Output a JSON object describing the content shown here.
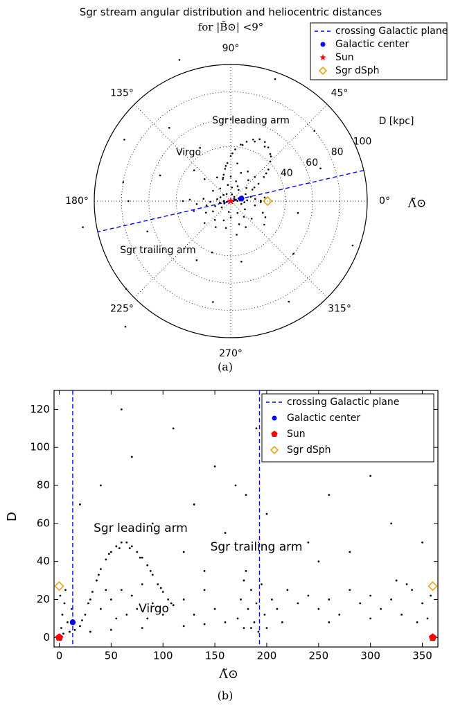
{
  "chart_data": [
    {
      "type": "polar",
      "title": "Sgr stream angular distribution and heliocentric distances",
      "subtitle": "for |B̃⊙| <9°",
      "rlim": [
        0,
        100
      ],
      "rticks": [
        40,
        60,
        80,
        100
      ],
      "thetaticks": [
        {
          "value": 0,
          "label": "0°"
        },
        {
          "value": 45,
          "label": "45°"
        },
        {
          "value": 90,
          "label": "90°"
        },
        {
          "value": 135,
          "label": "135°"
        },
        {
          "value": 180,
          "label": "180°"
        },
        {
          "value": 225,
          "label": "225°"
        },
        {
          "value": 270,
          "label": "270°"
        },
        {
          "value": 315,
          "label": "315°"
        }
      ],
      "r_label": "D [kpc]",
      "theta_label": "Λ̃⊙",
      "caption": "(a)",
      "grid": true,
      "annotations": [
        "Sgr leading arm",
        "Virgo",
        "Sgr trailing arm"
      ],
      "series": [
        {
          "name": "crossing Galactic plane",
          "color": "#0000ff",
          "marker": "dash",
          "theta": [
            13,
            193
          ]
        },
        {
          "name": "Galactic center",
          "color": "#0000ff",
          "marker": "circle",
          "theta": [
            13
          ],
          "values": [
            8
          ]
        },
        {
          "name": "Sun",
          "color": "#ff0000",
          "marker": "star",
          "theta": [
            0
          ],
          "values": [
            0
          ]
        },
        {
          "name": "Sgr dSph",
          "color": "#e8a317",
          "marker": "diamond",
          "theta": [
            0
          ],
          "values": [
            27
          ]
        }
      ]
    },
    {
      "type": "scatter",
      "xlim": [
        -5,
        365
      ],
      "ylim": [
        -5,
        130
      ],
      "xticks": [
        0,
        50,
        100,
        150,
        200,
        250,
        300,
        350
      ],
      "yticks": [
        0,
        20,
        40,
        60,
        80,
        100,
        120
      ],
      "xlabel": "Λ̃⊙",
      "ylabel": "D",
      "caption": "(b)",
      "annotations": [
        "Sgr leading arm",
        "Sgr trailing arm",
        "Virgo"
      ],
      "series": [
        {
          "name": "crossing Galactic plane",
          "color": "#0000ff",
          "marker": "dash",
          "x": [
            13,
            193
          ]
        },
        {
          "name": "Galactic center",
          "color": "#0000ff",
          "marker": "circle",
          "x": [
            13
          ],
          "values": [
            8
          ]
        },
        {
          "name": "Sun",
          "color": "#ff0000",
          "marker": "pentagon",
          "x": [
            0,
            360
          ],
          "values": [
            0,
            0
          ]
        },
        {
          "name": "Sgr dSph",
          "color": "#e8a317",
          "marker": "diamond",
          "x": [
            0,
            360
          ],
          "values": [
            27,
            27
          ]
        }
      ],
      "points": {
        "color": "#000000",
        "x": [
          20,
          25,
          28,
          32,
          36,
          40,
          45,
          50,
          55,
          60,
          65,
          70,
          75,
          80,
          85,
          90,
          95,
          100,
          105,
          110,
          22,
          30,
          38,
          48,
          58,
          68,
          78,
          88,
          98,
          108,
          50,
          60,
          70,
          75,
          80,
          90,
          65,
          55,
          85,
          100,
          40,
          45,
          2,
          3,
          5,
          8,
          10,
          12,
          15,
          1,
          4,
          6,
          30,
          50,
          80,
          120,
          140,
          160,
          130,
          150,
          120,
          140,
          172,
          175,
          178,
          180,
          182,
          185,
          188,
          190,
          195,
          198,
          200,
          205,
          210,
          215,
          185,
          192,
          178,
          220,
          230,
          240,
          250,
          260,
          270,
          280,
          290,
          300,
          310,
          320,
          330,
          340,
          350,
          355,
          358,
          345,
          335,
          325,
          300,
          260,
          40,
          70,
          90,
          110,
          130,
          150,
          160,
          170,
          180,
          200,
          220,
          240,
          260,
          280,
          300,
          320,
          340,
          120,
          20,
          230,
          60,
          350,
          190,
          140,
          250
        ],
        "values": [
          6,
          12,
          18,
          24,
          30,
          36,
          41,
          45,
          48,
          50,
          50,
          48,
          45,
          42,
          38,
          33,
          28,
          24,
          20,
          17,
          9,
          20,
          33,
          44,
          47,
          47,
          42,
          35,
          26,
          18,
          20,
          25,
          22,
          15,
          28,
          18,
          12,
          10,
          10,
          12,
          15,
          25,
          5,
          12,
          18,
          8,
          3,
          15,
          4,
          22,
          2,
          25,
          3,
          4,
          5,
          6,
          7,
          8,
          12,
          15,
          20,
          25,
          10,
          20,
          30,
          35,
          15,
          25,
          8,
          18,
          28,
          12,
          5,
          20,
          15,
          8,
          5,
          3,
          5,
          25,
          18,
          22,
          15,
          20,
          12,
          25,
          18,
          22,
          15,
          20,
          12,
          25,
          18,
          10,
          22,
          8,
          28,
          30,
          10,
          8,
          80,
          95,
          60,
          110,
          70,
          90,
          55,
          80,
          75,
          65,
          100,
          50,
          75,
          45,
          85,
          60,
          95,
          45,
          70,
          120,
          120,
          50,
          110,
          35,
          40
        ]
      }
    }
  ]
}
